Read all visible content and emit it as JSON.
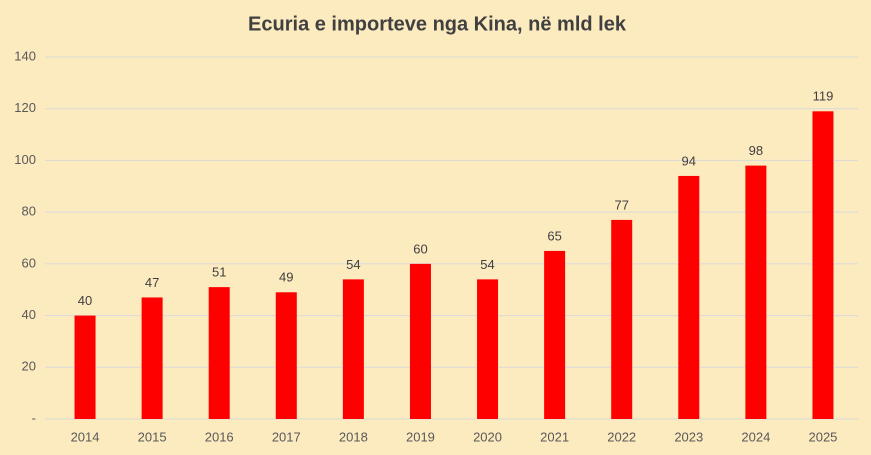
{
  "chart_data": {
    "type": "bar",
    "title": "Ecuria e importeve nga Kina, në mld lek",
    "categories": [
      "2014",
      "2015",
      "2016",
      "2017",
      "2018",
      "2019",
      "2020",
      "2021",
      "2022",
      "2023",
      "2024",
      "2025"
    ],
    "values": [
      40,
      47,
      51,
      49,
      54,
      60,
      54,
      65,
      77,
      94,
      98,
      119
    ],
    "color": "#ff0000",
    "ylim": [
      0,
      140
    ],
    "yticks": [
      {
        "value": 0,
        "label": "-"
      },
      20,
      40,
      60,
      80,
      100,
      120,
      140
    ],
    "grid": true
  }
}
